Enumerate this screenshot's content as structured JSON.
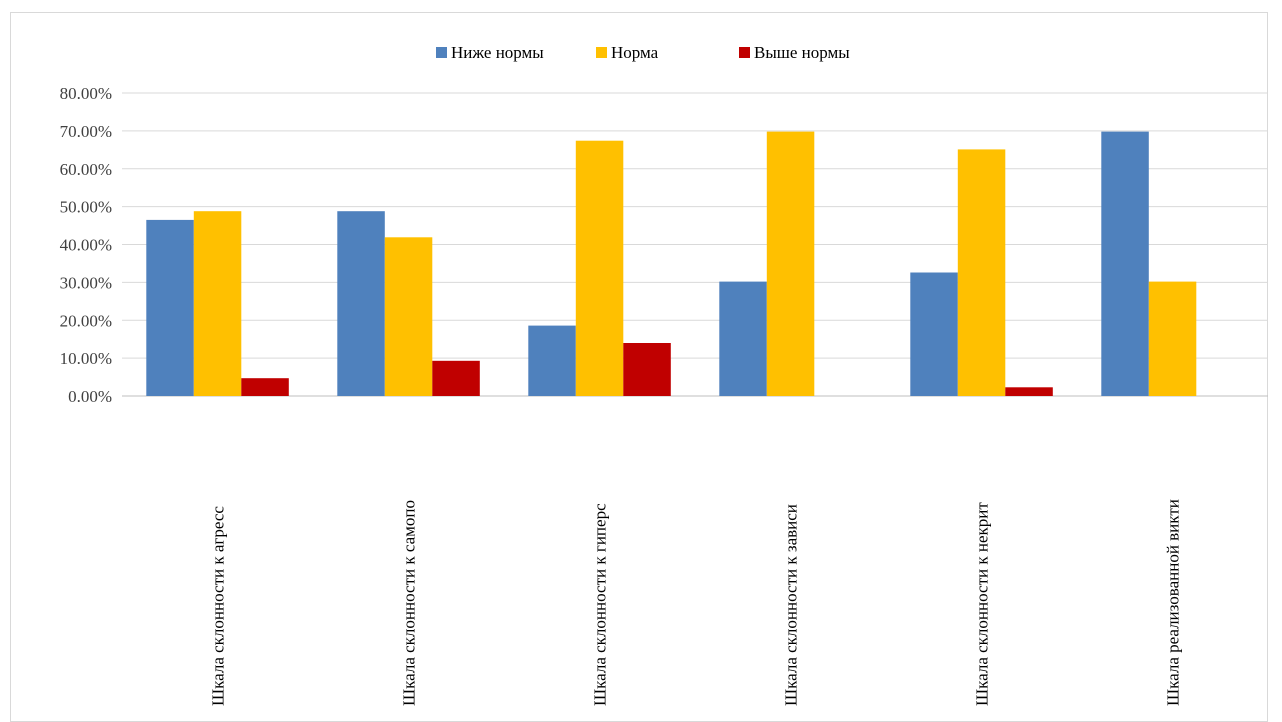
{
  "chart_data": {
    "type": "bar",
    "categories": [
      "Шкала склонности к агресс",
      "Шкала склонности к самопо",
      "Шкала склонности к гиперс",
      "Шкала склонности к зависи",
      "Шкала склонности к некрит",
      "Шкала реализованной викти"
    ],
    "series": [
      {
        "name": "Ниже нормы",
        "color": "#4f81bd",
        "values": [
          46.5,
          48.8,
          18.6,
          30.2,
          32.6,
          69.8
        ]
      },
      {
        "name": "Норма",
        "color": "#ffc000",
        "values": [
          48.8,
          41.9,
          67.4,
          69.8,
          65.1,
          30.2
        ]
      },
      {
        "name": "Выше нормы",
        "color": "#c00000",
        "values": [
          4.7,
          9.3,
          14.0,
          0,
          2.3,
          0
        ]
      }
    ],
    "yticks": [
      "0.00%",
      "10.00%",
      "20.00%",
      "30.00%",
      "40.00%",
      "50.00%",
      "60.00%",
      "70.00%",
      "80.00%"
    ],
    "ylim": [
      0,
      80
    ],
    "title": "",
    "xlabel": "",
    "ylabel": "",
    "legend_position": "top",
    "grid": true,
    "gridline_color": "#d9d9d9"
  }
}
